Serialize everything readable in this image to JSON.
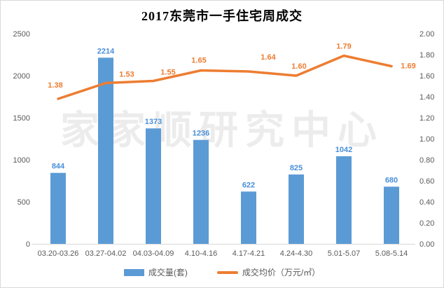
{
  "watermark": "家家顺研究中心",
  "colors": {
    "bar": "#5B9BD5",
    "bar_label": "#4A90D9",
    "line": "#ED7D31",
    "line_label": "#ED7D31",
    "axis_text": "#595959",
    "axis_line": "#D9D9D9"
  },
  "chart_data": {
    "type": "bar+line",
    "title": "2017东莞市一手住宅周成交",
    "categories": [
      "03.20-03.26",
      "03.27-04.02",
      "04.03-04.09",
      "4.10-4.16",
      "4.17-4.21",
      "4.24-4.30",
      "5.01-5.07",
      "5.08-5.14"
    ],
    "series": [
      {
        "name": "成交量(套)",
        "type": "bar",
        "axis": "left",
        "values": [
          844,
          2214,
          1373,
          1236,
          622,
          825,
          1042,
          680
        ],
        "labels": [
          "844",
          "2214",
          "1373",
          "1236",
          "622",
          "825",
          "1042",
          "680"
        ]
      },
      {
        "name": "成交均价（万元/㎡）",
        "type": "line",
        "axis": "right",
        "values": [
          1.38,
          1.53,
          1.55,
          1.65,
          1.64,
          1.6,
          1.79,
          1.69
        ],
        "labels": [
          "1.38",
          "1.53",
          "1.55",
          "1.65",
          "1.64",
          "1.60",
          "1.79",
          "1.69"
        ]
      }
    ],
    "left_axis": {
      "min": 0,
      "max": 2500,
      "step": 500,
      "ticks": [
        "0",
        "500",
        "1000",
        "1500",
        "2000",
        "2500"
      ]
    },
    "right_axis": {
      "min": 0,
      "max": 2.0,
      "step": 0.2,
      "ticks": [
        "0.00",
        "0.20",
        "0.40",
        "0.60",
        "0.80",
        "1.00",
        "1.20",
        "1.40",
        "1.60",
        "1.80",
        "2.00"
      ]
    },
    "grid": false,
    "legend_position": "bottom"
  }
}
